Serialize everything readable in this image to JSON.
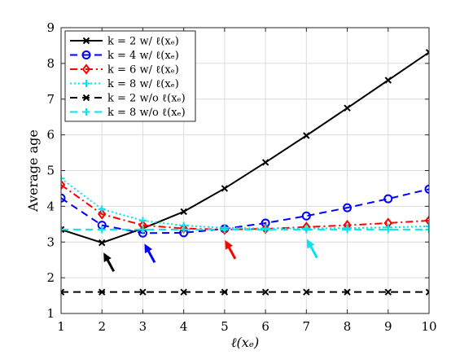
{
  "chart_data": {
    "type": "line",
    "xlabel": "ℓ(xₑ)",
    "ylabel": "Average age",
    "xlim": [
      1,
      10
    ],
    "ylim": [
      1,
      9
    ],
    "xticks": [
      1,
      2,
      3,
      4,
      5,
      6,
      7,
      8,
      9,
      10
    ],
    "yticks": [
      1,
      2,
      3,
      4,
      5,
      6,
      7,
      8,
      9
    ],
    "grid": true,
    "legend_position": "top-left",
    "x": [
      1,
      2,
      3,
      4,
      5,
      6,
      7,
      8,
      9,
      10
    ],
    "series": [
      {
        "name": "k = 2 w/ ℓ(xₑ)",
        "color": "#000000",
        "line": "solid",
        "marker": "x",
        "values": [
          3.35,
          2.98,
          3.38,
          3.85,
          4.5,
          5.23,
          5.98,
          6.75,
          7.53,
          8.31
        ]
      },
      {
        "name": "k = 4 w/ ℓ(xₑ)",
        "color": "#0000ff",
        "line": "dashed",
        "marker": "circle",
        "values": [
          4.23,
          3.47,
          3.25,
          3.26,
          3.37,
          3.53,
          3.73,
          3.96,
          4.21,
          4.48
        ]
      },
      {
        "name": "k = 6 w/ ℓ(xₑ)",
        "color": "#ff0000",
        "line": "dashdot",
        "marker": "diamond",
        "values": [
          4.6,
          3.78,
          3.47,
          3.38,
          3.35,
          3.37,
          3.42,
          3.47,
          3.53,
          3.6
        ]
      },
      {
        "name": "k = 8 w/ ℓ(xₑ)",
        "color": "#00e5ee",
        "line": "dotted",
        "marker": "plus",
        "values": [
          4.78,
          3.92,
          3.6,
          3.46,
          3.4,
          3.38,
          3.38,
          3.39,
          3.41,
          3.44
        ]
      },
      {
        "name": "k = 2 w/o ℓ(xₑ)",
        "color": "#000000",
        "line": "dashed",
        "marker": "x",
        "values": [
          1.6,
          1.6,
          1.6,
          1.6,
          1.6,
          1.6,
          1.6,
          1.6,
          1.6,
          1.6
        ]
      },
      {
        "name": "k = 8 w/o ℓ(xₑ)",
        "color": "#00e5ee",
        "line": "dashed",
        "marker": "plus",
        "values": [
          3.35,
          3.35,
          3.35,
          3.35,
          3.35,
          3.35,
          3.35,
          3.35,
          3.35,
          3.35
        ]
      }
    ],
    "annotations": [
      {
        "type": "arrow",
        "color": "#000000",
        "points_to": [
          2.05,
          3.0
        ]
      },
      {
        "type": "arrow",
        "color": "#0000ff",
        "points_to": [
          3.05,
          3.25
        ]
      },
      {
        "type": "arrow",
        "color": "#ff0000",
        "points_to": [
          5.02,
          3.35
        ]
      },
      {
        "type": "arrow",
        "color": "#00e5ee",
        "points_to": [
          7.02,
          3.38
        ]
      }
    ]
  }
}
